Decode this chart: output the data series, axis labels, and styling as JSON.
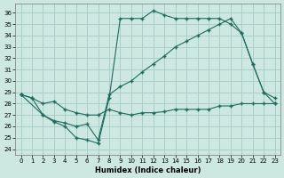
{
  "xlabel": "Humidex (Indice chaleur)",
  "background_color": "#cce8e0",
  "grid_color": "#aacfc8",
  "line_color": "#1e6b5e",
  "xlim": [
    -0.5,
    23.5
  ],
  "ylim": [
    23.5,
    36.8
  ],
  "yticks": [
    24,
    25,
    26,
    27,
    28,
    29,
    30,
    31,
    32,
    33,
    34,
    35,
    36
  ],
  "xticks": [
    0,
    1,
    2,
    3,
    4,
    5,
    6,
    7,
    8,
    9,
    10,
    11,
    12,
    13,
    14,
    15,
    16,
    17,
    18,
    19,
    20,
    21,
    22,
    23
  ],
  "line1_x": [
    0,
    1,
    2,
    3,
    4,
    5,
    6,
    7,
    8,
    9,
    10,
    11,
    12,
    13,
    14,
    15,
    16,
    17,
    18,
    19,
    20,
    21,
    22,
    23
  ],
  "line1_y": [
    28.8,
    28.5,
    28.0,
    28.2,
    27.5,
    27.2,
    27.0,
    27.0,
    27.5,
    27.2,
    27.0,
    27.2,
    27.2,
    27.3,
    27.5,
    27.5,
    27.5,
    27.5,
    27.8,
    27.8,
    28.0,
    28.0,
    28.0,
    28.0
  ],
  "line2_x": [
    0,
    1,
    2,
    3,
    4,
    5,
    6,
    7,
    8,
    9,
    10,
    11,
    12,
    13,
    14,
    15,
    16,
    17,
    18,
    19,
    20,
    21,
    22,
    23
  ],
  "line2_y": [
    28.8,
    28.5,
    27.0,
    26.4,
    26.0,
    25.0,
    24.8,
    24.5,
    28.5,
    35.5,
    35.5,
    35.5,
    36.2,
    35.8,
    35.5,
    35.5,
    35.5,
    35.5,
    35.5,
    35.0,
    34.2,
    31.5,
    29.0,
    28.0
  ],
  "line3_x": [
    0,
    2,
    3,
    4,
    5,
    6,
    7,
    8,
    9,
    10,
    11,
    12,
    13,
    14,
    15,
    16,
    17,
    18,
    19,
    20,
    21,
    22,
    23
  ],
  "line3_y": [
    28.8,
    27.0,
    26.5,
    26.3,
    26.0,
    26.2,
    24.8,
    28.8,
    29.5,
    30.0,
    30.8,
    31.5,
    32.2,
    33.0,
    33.5,
    34.0,
    34.5,
    35.0,
    35.5,
    34.2,
    31.5,
    29.0,
    28.5
  ]
}
